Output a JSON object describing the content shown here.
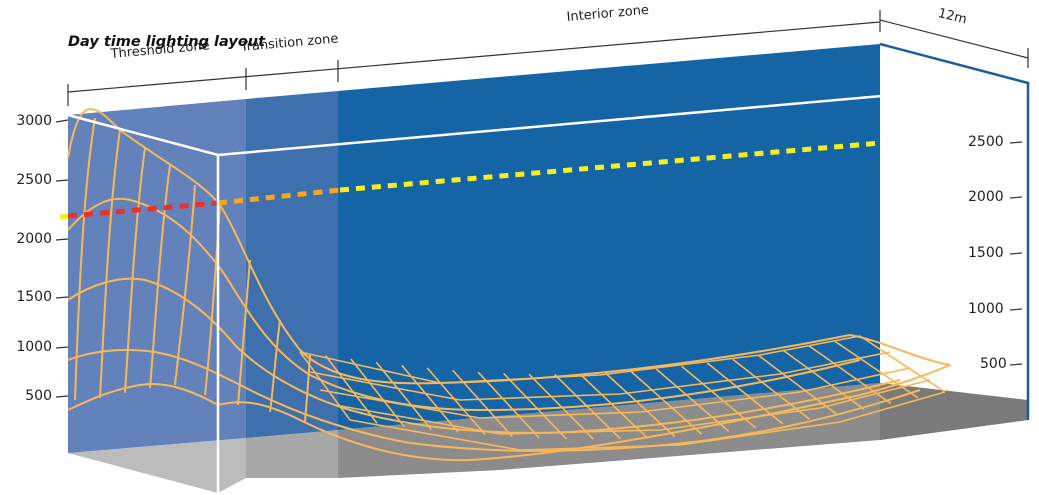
{
  "title": "Day time lighting layout",
  "zones": {
    "threshold": "Threshold zone",
    "transition": "Transition zone",
    "interior": "Interior zone",
    "width": "12m"
  },
  "left_axis_ticks": [
    "3000",
    "2500",
    "2000",
    "1500",
    "1000",
    "500"
  ],
  "right_axis_ticks": [
    "2500",
    "2000",
    "1500",
    "1000",
    "500"
  ],
  "colors": {
    "threshold_wall": "#6382bb",
    "transition_wall": "#3d70ad",
    "interior_wall": "#1564a5",
    "floor_light": "#bdbdbd",
    "floor_mid": "#9b9b9b",
    "floor_dark": "#7c7c7c",
    "mesh": "#f7b85a",
    "dash_red": "#e8322c",
    "dash_orange": "#f5a623",
    "dash_yellow": "#f7ee1e",
    "frame_right": "#1c5d99"
  }
}
